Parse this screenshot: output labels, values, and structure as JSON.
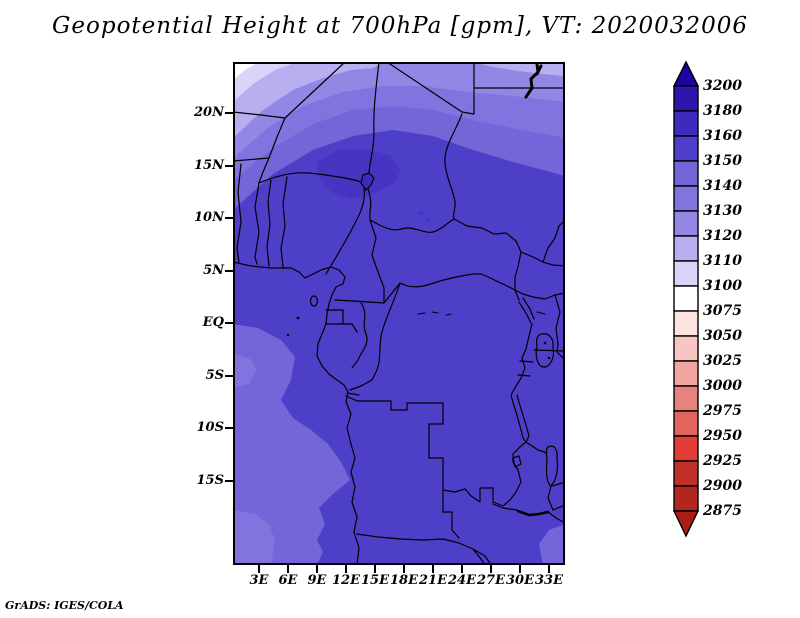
{
  "title": "Geopotential Height at 700hPa [gpm], VT: 2020032006",
  "credit": "GrADS: IGES/COLA",
  "axes": {
    "lat_labels": [
      "20N",
      "15N",
      "10N",
      "5N",
      "EQ",
      "5S",
      "10S",
      "15S"
    ],
    "lon_labels": [
      "3E",
      "6E",
      "9E",
      "12E",
      "15E",
      "18E",
      "21E",
      "24E",
      "27E",
      "30E",
      "33E"
    ]
  },
  "colorbar": {
    "labels": [
      "3200",
      "3180",
      "3160",
      "3150",
      "3140",
      "3130",
      "3120",
      "3110",
      "3100",
      "3075",
      "3050",
      "3025",
      "3000",
      "2975",
      "2950",
      "2925",
      "2900",
      "2875"
    ],
    "colors": [
      "#1d05a2",
      "#2d16ae",
      "#3e2abc",
      "#4d3fc8",
      "#7366d8",
      "#8074de",
      "#9287e5",
      "#b7aff0",
      "#dad5f8",
      "#ffffff",
      "#fbe3e1",
      "#f7c6c3",
      "#f1a5a0",
      "#e5847f",
      "#e0655f",
      "#e23e37",
      "#c02f28",
      "#b2261f",
      "#a81d16"
    ]
  },
  "chart_data": {
    "type": "heatmap",
    "title": "Geopotential Height at 700hPa [gpm], VT: 2020032006",
    "variable": "Geopotential Height",
    "pressure_level": "700hPa",
    "units": "gpm",
    "valid_time": "2020032006",
    "renderer": "GrADS: IGES/COLA",
    "x_ticks": [
      "3E",
      "6E",
      "9E",
      "12E",
      "15E",
      "18E",
      "21E",
      "24E",
      "27E",
      "30E",
      "33E"
    ],
    "y_ticks": [
      "20N",
      "15N",
      "10N",
      "5N",
      "EQ",
      "5S",
      "10S",
      "15S"
    ],
    "contour_levels": [
      2875,
      2900,
      2925,
      2950,
      2975,
      3000,
      3025,
      3050,
      3075,
      3100,
      3110,
      3120,
      3130,
      3140,
      3150,
      3160,
      3180,
      3200
    ],
    "palette_low_to_high": [
      "#a81d16",
      "#b2261f",
      "#c02f28",
      "#e23e37",
      "#e0655f",
      "#e5847f",
      "#f1a5a0",
      "#f7c6c3",
      "#fbe3e1",
      "#ffffff",
      "#dad5f8",
      "#b7aff0",
      "#9287e5",
      "#8074de",
      "#7366d8",
      "#4d3fc8",
      "#3e2abc",
      "#2d16ae",
      "#1d05a2"
    ],
    "legend_position": "right",
    "grid": false,
    "field_summary": {
      "dominant_range_gpm": "3150-3160 over most of the central African domain",
      "local_maximum": "3160-3180 patch over Nigeria / Lake Chad region (~8-16E, 8-13N)",
      "northwest_corner": "values decrease to ~3100 at extreme NW corner (lightest shading)",
      "north_edge": "banded gradient 3110-3150 along the northern edge (Sahara)",
      "southwest_ocean": "3130-3150 lighter patches in the south Atlantic corner (~0-5E, 13-20S)"
    }
  }
}
